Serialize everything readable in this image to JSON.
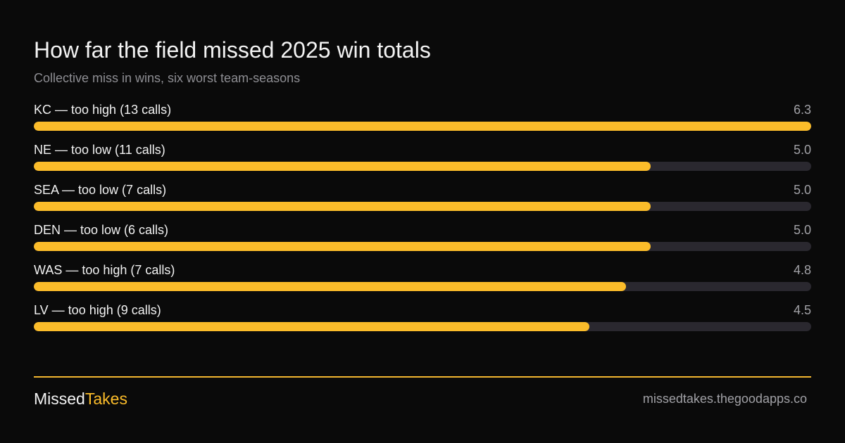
{
  "chart_data": {
    "type": "bar",
    "orientation": "horizontal",
    "title": "How far the field missed 2025 win totals",
    "subtitle": "Collective miss in wins, six worst team-seasons",
    "categories": [
      "KC — too high (13 calls)",
      "NE — too low (11 calls)",
      "SEA — too low (7 calls)",
      "DEN — too low (6 calls)",
      "WAS — too high (7 calls)",
      "LV — too high (9 calls)"
    ],
    "values": [
      6.3,
      5.0,
      5.0,
      5.0,
      4.8,
      4.5
    ],
    "value_labels": [
      "6.3",
      "5.0",
      "5.0",
      "5.0",
      "4.8",
      "4.5"
    ],
    "xlim": [
      0,
      6.3
    ],
    "grid": false,
    "colors": {
      "bar": "#fbbc2a",
      "track": "#2a282f",
      "background": "#0a0a0a",
      "accent": "#fbbc2a"
    }
  },
  "footer": {
    "brand_part1": "Missed",
    "brand_part2": "Takes",
    "url": "missedtakes.thegoodapps.co"
  }
}
